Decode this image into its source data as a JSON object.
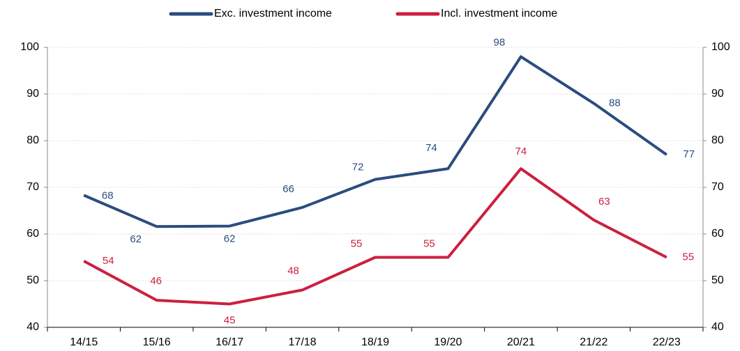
{
  "chart_data": {
    "type": "line",
    "categories": [
      "14/15",
      "15/16",
      "16/17",
      "17/18",
      "18/19",
      "19/20",
      "20/21",
      "21/22",
      "22/23"
    ],
    "series": [
      {
        "name": "Exc. investment income",
        "color": "#2b4c7e",
        "values": [
          68.3,
          61.6,
          61.7,
          65.7,
          71.7,
          74,
          98,
          88,
          77
        ],
        "value_labels": [
          "68",
          "62",
          "62",
          "66",
          "72",
          "74",
          "98",
          "88",
          "77"
        ]
      },
      {
        "name": "Incl. investment income",
        "color": "#cc1f3f",
        "values": [
          54.2,
          45.8,
          45,
          48,
          55,
          55,
          74,
          63,
          55
        ],
        "value_labels": [
          "54",
          "46",
          "45",
          "48",
          "55",
          "55",
          "74",
          "63",
          "55"
        ]
      }
    ],
    "ylim": [
      40,
      100
    ],
    "yticks": [
      40,
      50,
      60,
      70,
      80,
      90,
      100
    ],
    "y2lim": [
      40,
      100
    ],
    "y2ticks": [
      40,
      50,
      60,
      70,
      80,
      90,
      100
    ],
    "grid": true,
    "legend": "top"
  }
}
